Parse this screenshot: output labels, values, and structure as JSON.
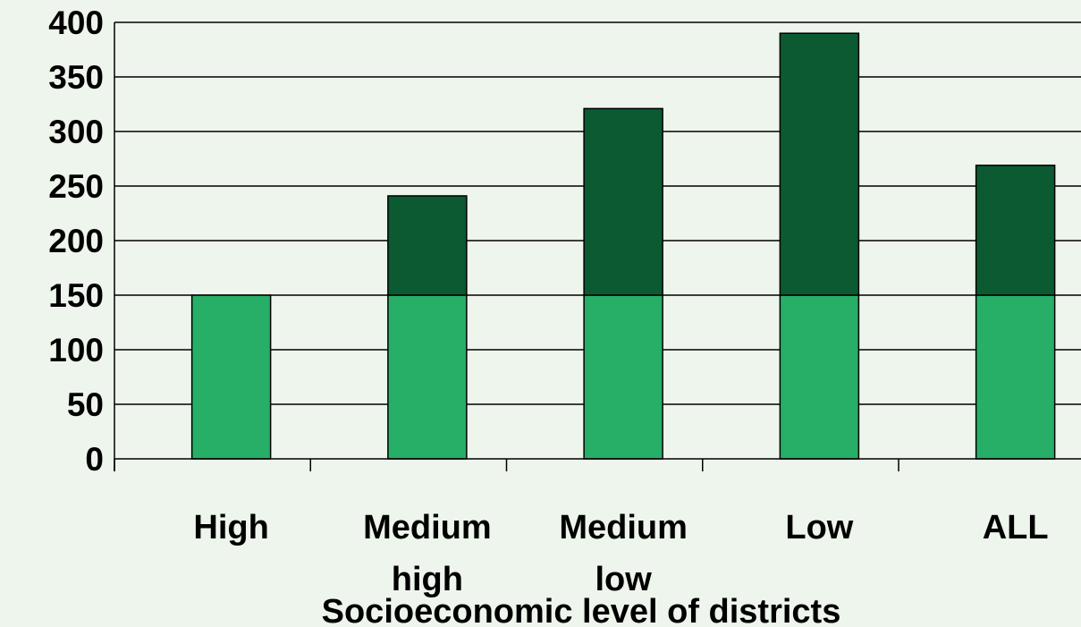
{
  "chart_data": {
    "type": "bar",
    "stacked": true,
    "categories": [
      "High",
      "Medium high",
      "Medium low",
      "Low",
      "ALL"
    ],
    "series": [
      {
        "values": [
          150,
          150,
          150,
          150,
          150
        ],
        "color": "#27ae67"
      },
      {
        "values": [
          0,
          91,
          171,
          240,
          119
        ],
        "color": "#0b5a31"
      }
    ],
    "xlabel": "Socioeconomic level of districts",
    "ylabel": "",
    "ylim": [
      0,
      400
    ],
    "yticks": [
      "0",
      "50",
      "100",
      "150",
      "200",
      "250",
      "300",
      "350",
      "400"
    ],
    "grid": true,
    "legend": "none"
  },
  "colors": {
    "background": "#eef5ec",
    "gridline": "#000000"
  }
}
